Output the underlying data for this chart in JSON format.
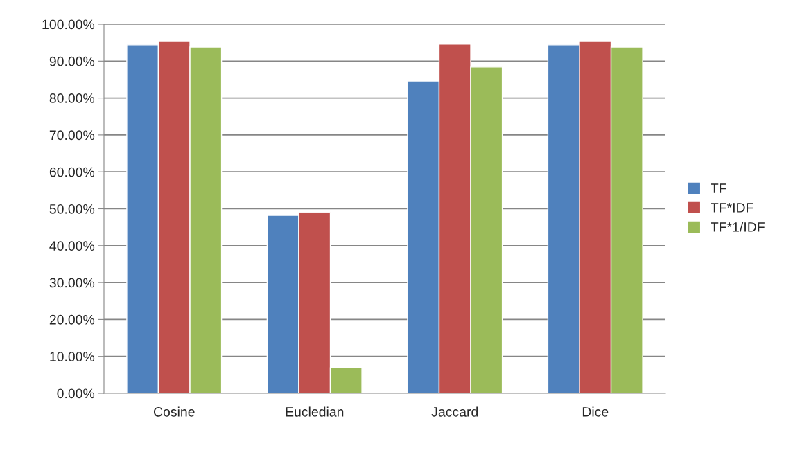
{
  "chart_data": {
    "type": "bar",
    "categories": [
      "Cosine",
      "Eucledian",
      "Jaccard",
      "Dice"
    ],
    "series": [
      {
        "name": "TF",
        "color": "#4f81bd",
        "values": [
          94.4,
          48.2,
          84.6,
          94.4
        ]
      },
      {
        "name": "TF*IDF",
        "color": "#c0504d",
        "values": [
          95.5,
          49.0,
          94.6,
          95.5
        ]
      },
      {
        "name": "TF*1/IDF",
        "color": "#9bbb59",
        "values": [
          93.8,
          6.9,
          88.4,
          93.8
        ]
      }
    ],
    "ylim": [
      0,
      100
    ],
    "yticks": [
      {
        "value": 0,
        "label": "0.00%"
      },
      {
        "value": 10,
        "label": "10.00%"
      },
      {
        "value": 20,
        "label": "20.00%"
      },
      {
        "value": 30,
        "label": "30.00%"
      },
      {
        "value": 40,
        "label": "40.00%"
      },
      {
        "value": 50,
        "label": "50.00%"
      },
      {
        "value": 60,
        "label": "60.00%"
      },
      {
        "value": 70,
        "label": "70.00%"
      },
      {
        "value": 80,
        "label": "80.00%"
      },
      {
        "value": 90,
        "label": "90.00%"
      },
      {
        "value": 100,
        "label": "100.00%"
      }
    ],
    "grid": "y",
    "legend": "right"
  }
}
